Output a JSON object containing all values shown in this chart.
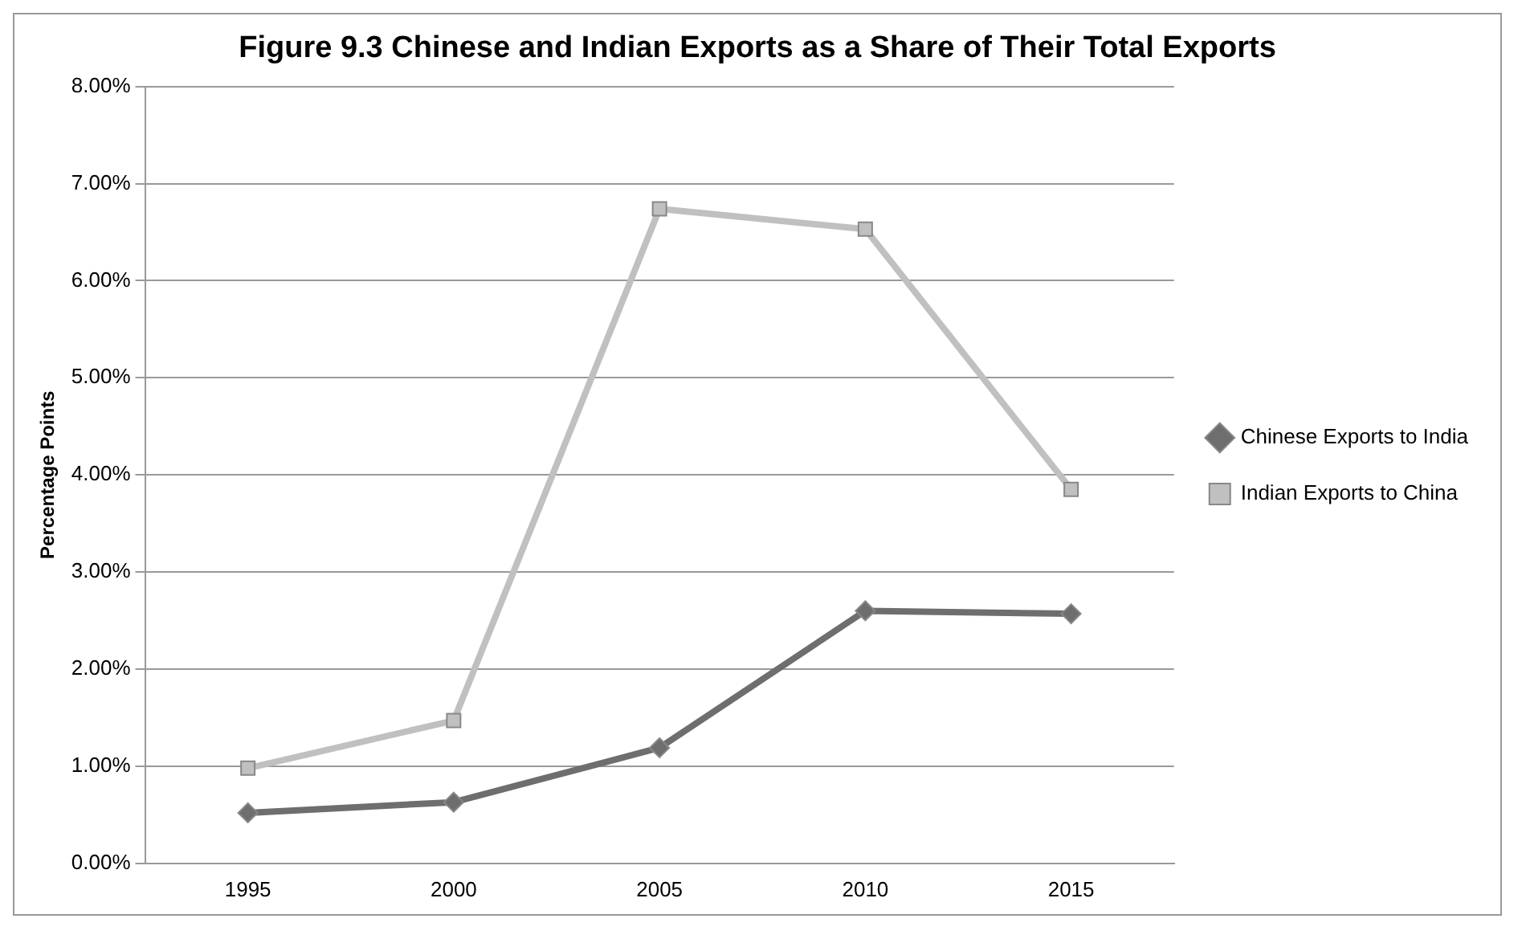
{
  "chart_data": {
    "type": "line",
    "title": "Figure 9.3 Chinese and Indian Exports as a Share of Their Total Exports",
    "ylabel": "Percentage Points",
    "categories": [
      "1995",
      "2000",
      "2005",
      "2010",
      "2015"
    ],
    "series": [
      {
        "name": "Chinese Exports to India",
        "color": "#6e6e6e",
        "marker": "diamond",
        "values": [
          0.52,
          0.63,
          1.19,
          2.6,
          2.57
        ]
      },
      {
        "name": "Indian Exports to China",
        "color": "#c0c0c0",
        "marker": "square",
        "values": [
          0.98,
          1.47,
          6.74,
          6.53,
          3.85
        ]
      }
    ],
    "ylim": [
      0,
      8
    ],
    "yticks": [
      {
        "value": 0,
        "label": "0.00%"
      },
      {
        "value": 1,
        "label": "1.00%"
      },
      {
        "value": 2,
        "label": "2.00%"
      },
      {
        "value": 3,
        "label": "3.00%"
      },
      {
        "value": 4,
        "label": "4.00%"
      },
      {
        "value": 5,
        "label": "5.00%"
      },
      {
        "value": 6,
        "label": "6.00%"
      },
      {
        "value": 7,
        "label": "7.00%"
      },
      {
        "value": 8,
        "label": "8.00%"
      }
    ],
    "grid": "y",
    "legend": "right",
    "line_style": "solid"
  }
}
